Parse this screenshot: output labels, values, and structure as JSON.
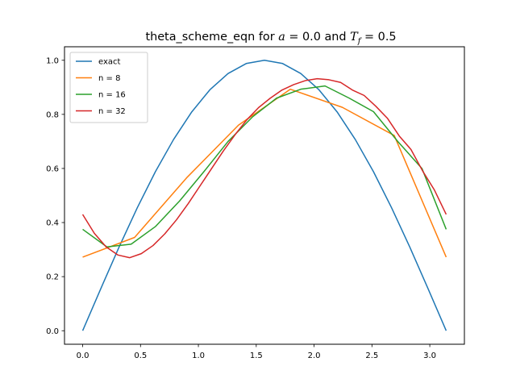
{
  "chart_data": {
    "type": "line",
    "title": "theta_scheme_eqn for a = 0.0 and T_f = 0.5",
    "title_parts": {
      "prefix": "theta_scheme_eqn for ",
      "a_symbol": "a",
      "a_eq": " = 0.0",
      "and_word": " and ",
      "t_symbol": "T",
      "t_sub": "f",
      "t_eq": " = 0.5"
    },
    "xlabel": "",
    "ylabel": "",
    "xlim": [
      -0.157,
      3.299
    ],
    "ylim": [
      -0.05,
      1.05
    ],
    "x_ticks": [
      0.0,
      0.5,
      1.0,
      1.5,
      2.0,
      2.5,
      3.0
    ],
    "x_tick_labels": [
      "0.0",
      "0.5",
      "1.0",
      "1.5",
      "2.0",
      "2.5",
      "3.0"
    ],
    "y_ticks": [
      0.0,
      0.2,
      0.4,
      0.6,
      0.8,
      1.0
    ],
    "y_tick_labels": [
      "0.0",
      "0.2",
      "0.4",
      "0.6",
      "0.8",
      "1.0"
    ],
    "grid": false,
    "legend_position": "top-left",
    "series": [
      {
        "name": "exact",
        "color": "#1f77b4",
        "x": [
          0.0,
          0.1571,
          0.3142,
          0.4712,
          0.6283,
          0.7854,
          0.9425,
          1.0996,
          1.2566,
          1.4137,
          1.5708,
          1.7279,
          1.885,
          2.042,
          2.1991,
          2.3562,
          2.5133,
          2.6704,
          2.8274,
          2.9845,
          3.1416
        ],
        "y": [
          0.0,
          0.156,
          0.309,
          0.454,
          0.588,
          0.707,
          0.809,
          0.891,
          0.951,
          0.988,
          1.0,
          0.988,
          0.951,
          0.891,
          0.809,
          0.707,
          0.588,
          0.454,
          0.309,
          0.156,
          0.0
        ]
      },
      {
        "name": "n = 8",
        "color": "#ff7f0e",
        "x": [
          0.0,
          0.4488,
          0.8976,
          1.3464,
          1.7952,
          2.244,
          2.6928,
          3.1416
        ],
        "y": [
          0.272,
          0.345,
          0.565,
          0.76,
          0.893,
          0.826,
          0.722,
          0.272
        ]
      },
      {
        "name": "n = 16",
        "color": "#2ca02c",
        "x": [
          0.0,
          0.2094,
          0.4189,
          0.6283,
          0.8378,
          1.0472,
          1.2566,
          1.4661,
          1.6755,
          1.885,
          2.0944,
          2.3038,
          2.5133,
          2.7227,
          2.9322,
          3.1416
        ],
        "y": [
          0.375,
          0.31,
          0.32,
          0.385,
          0.48,
          0.588,
          0.7,
          0.79,
          0.86,
          0.893,
          0.905,
          0.86,
          0.81,
          0.7,
          0.6,
          0.375
        ]
      },
      {
        "name": "n = 32",
        "color": "#d62728",
        "x": [
          0.0,
          0.1013,
          0.2027,
          0.304,
          0.4054,
          0.5067,
          0.6081,
          0.7094,
          0.8107,
          0.9121,
          1.0134,
          1.1148,
          1.2161,
          1.3174,
          1.4188,
          1.5201,
          1.6215,
          1.7228,
          1.8241,
          1.9255,
          2.0268,
          2.1282,
          2.2295,
          2.3308,
          2.4322,
          2.5335,
          2.6349,
          2.7362,
          2.8375,
          2.9389,
          3.0402,
          3.1416
        ],
        "y": [
          0.43,
          0.36,
          0.31,
          0.28,
          0.27,
          0.285,
          0.315,
          0.358,
          0.41,
          0.47,
          0.535,
          0.6,
          0.665,
          0.725,
          0.78,
          0.825,
          0.86,
          0.89,
          0.91,
          0.925,
          0.932,
          0.928,
          0.918,
          0.89,
          0.87,
          0.83,
          0.785,
          0.72,
          0.67,
          0.59,
          0.52,
          0.43
        ]
      }
    ]
  }
}
